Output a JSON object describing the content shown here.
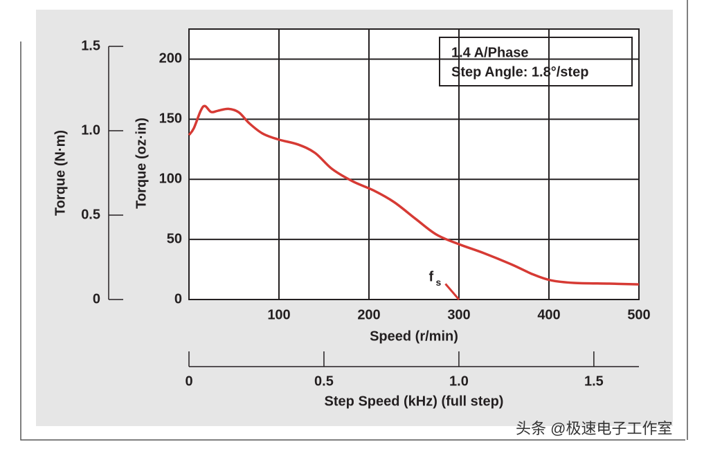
{
  "chart_data": {
    "type": "line",
    "x_label": "Speed (r/min)",
    "y_label": "Torque (oz·in)",
    "y2_label": "Torque (N·m)",
    "x2_label": "Step Speed (kHz) (full step)",
    "x": [
      0,
      5.4,
      13,
      17.7,
      24.6,
      32,
      43.8,
      55.4,
      67,
      82,
      100,
      121,
      140,
      159,
      182,
      205,
      228,
      252,
      275,
      300,
      328,
      359,
      382,
      402,
      428,
      467,
      500
    ],
    "values": [
      136.8,
      142.5,
      157,
      161,
      156,
      157,
      158.6,
      155.7,
      146.6,
      138,
      133,
      129,
      122,
      108.6,
      98.3,
      90.8,
      81,
      67,
      54,
      46,
      38.5,
      29,
      21,
      16,
      13.8,
      13.2,
      12.6
    ],
    "color": "#d63a34",
    "xlim": [
      0,
      500
    ],
    "ylim": [
      0,
      225
    ],
    "xticks": [
      100,
      200,
      300,
      400,
      500
    ],
    "yticks": [
      0,
      50,
      100,
      150,
      200
    ],
    "y2lim": [
      0,
      1.5
    ],
    "y2ticks": [
      0,
      0.5,
      {
        "value": 1,
        "label": "1.0"
      },
      1.5
    ],
    "x2lim": [
      0,
      1.667
    ],
    "x2ticks": [
      0,
      0.5,
      {
        "value": 1,
        "label": "1.0"
      },
      1.5
    ],
    "grid": true,
    "annotations": [
      "1.4 A/Phase",
      "Step Angle: 1.8°/step"
    ],
    "fs": {
      "text": "f",
      "sub": "s",
      "x": [
        285,
        300
      ],
      "y": [
        13,
        0
      ]
    }
  },
  "watermark": "头条 @极速电子工作室"
}
